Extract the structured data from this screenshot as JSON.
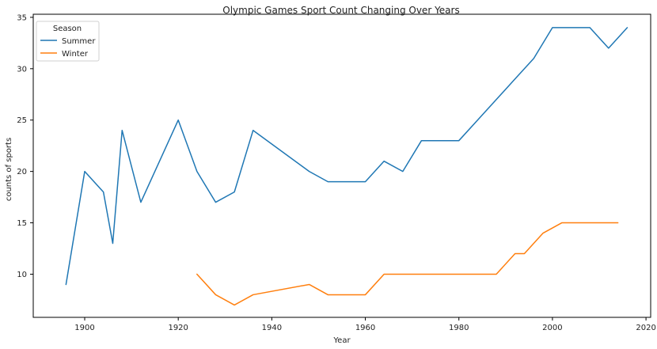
{
  "chart_data": {
    "type": "line",
    "title": "Olympic Games Sport Count Changing Over Years",
    "xlabel": "Year",
    "ylabel": "counts of sports",
    "xlim": [
      1889,
      2021
    ],
    "ylim": [
      5.8,
      35.3
    ],
    "xticks": [
      1900,
      1920,
      1940,
      1960,
      1980,
      2000,
      2020
    ],
    "yticks": [
      10,
      15,
      20,
      25,
      30,
      35
    ],
    "grid": false,
    "legend": {
      "title": "Season",
      "placement": "top-left"
    },
    "series": [
      {
        "name": "Summer",
        "color": "#1f77b4",
        "x": [
          1896,
          1900,
          1904,
          1906,
          1908,
          1912,
          1920,
          1924,
          1928,
          1932,
          1936,
          1948,
          1952,
          1956,
          1960,
          1964,
          1968,
          1972,
          1976,
          1980,
          1984,
          1988,
          1992,
          1996,
          2000,
          2004,
          2008,
          2012,
          2016
        ],
        "values": [
          9,
          20,
          18,
          13,
          24,
          17,
          25,
          20,
          17,
          18,
          24,
          20,
          19,
          19,
          19,
          21,
          20,
          23,
          23,
          23,
          25,
          27,
          29,
          31,
          34,
          34,
          34,
          32,
          34
        ]
      },
      {
        "name": "Winter",
        "color": "#ff7f0e",
        "x": [
          1924,
          1928,
          1932,
          1936,
          1948,
          1952,
          1956,
          1960,
          1964,
          1968,
          1972,
          1976,
          1980,
          1984,
          1988,
          1992,
          1994,
          1998,
          2002,
          2006,
          2010,
          2014
        ],
        "values": [
          10,
          8,
          7,
          8,
          9,
          8,
          8,
          8,
          10,
          10,
          10,
          10,
          10,
          10,
          10,
          12,
          12,
          14,
          15,
          15,
          15,
          15
        ]
      }
    ]
  }
}
